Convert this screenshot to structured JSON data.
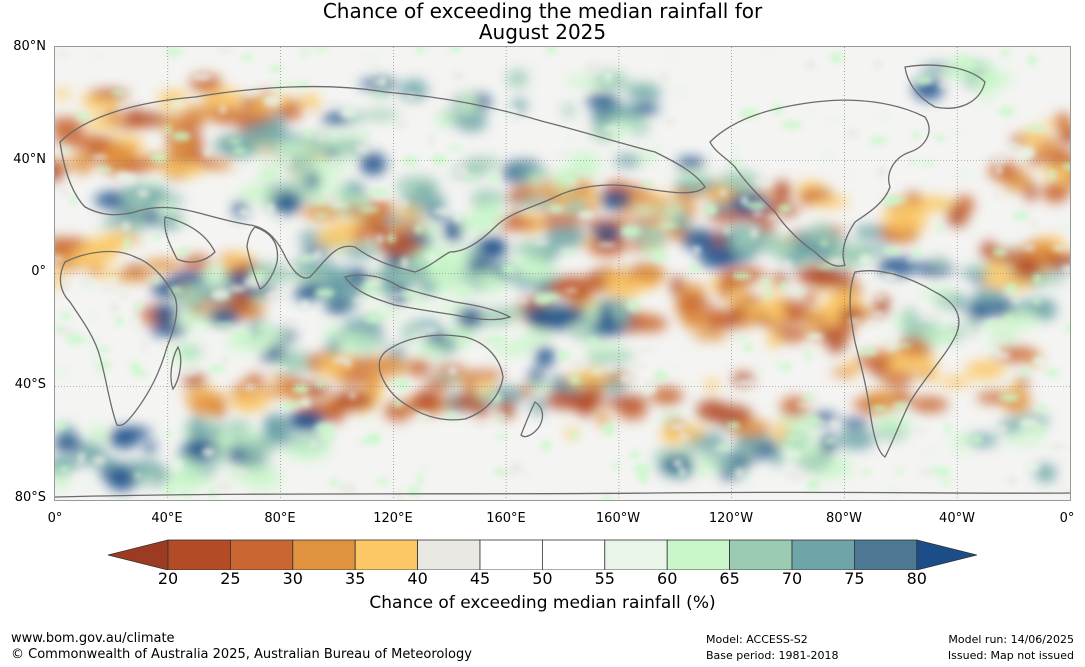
{
  "title": {
    "line1": "Chance of exceeding the median rainfall for",
    "line2": "August 2025"
  },
  "map": {
    "lat_labels": [
      "80°N",
      "40°N",
      "0°",
      "40°S",
      "80°S"
    ],
    "lon_labels": [
      "0°",
      "40°E",
      "80°E",
      "120°E",
      "160°E",
      "160°W",
      "120°W",
      "80°W",
      "40°W",
      "0°"
    ],
    "region": "global",
    "grid": true
  },
  "legend": {
    "ticks": [
      "20",
      "25",
      "30",
      "35",
      "40",
      "45",
      "50",
      "55",
      "60",
      "65",
      "70",
      "75",
      "80"
    ],
    "colors": [
      "#9c3a22",
      "#b34b27",
      "#c96631",
      "#e0923f",
      "#fcc866",
      "#e9e8e3",
      "#ffffff",
      "#ffffff",
      "#e8f5e8",
      "#c9f7c9",
      "#9ccbb4",
      "#6fa4a8",
      "#4c7893",
      "#1b4e88"
    ],
    "label": "Chance of exceeding median rainfall (%)"
  },
  "footer": {
    "url": "www.bom.gov.au/climate",
    "copyright": "© Commonwealth of Australia 2025, Australian Bureau of Meteorology",
    "model": "Model: ACCESS-S2",
    "base_period": "Base period: 1981-2018",
    "model_run": "Model run: 14/06/2025",
    "issued": "Issued: Map not issued"
  }
}
